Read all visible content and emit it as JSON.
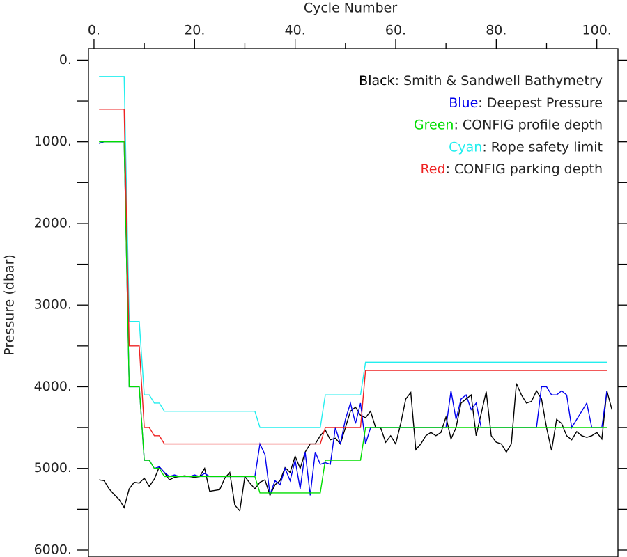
{
  "chart_data": {
    "type": "line",
    "xlabel": "Cycle Number",
    "ylabel": "Pressure (dbar)",
    "xlim": [
      -1.1,
      104.2
    ],
    "ylim": [
      -140,
      6000
    ],
    "y_inverted": true,
    "xticks": [
      {
        "value": 0,
        "label": "0."
      },
      {
        "value": 20,
        "label": "20."
      },
      {
        "value": 40,
        "label": "40."
      },
      {
        "value": 60,
        "label": "60."
      },
      {
        "value": 80,
        "label": "80."
      },
      {
        "value": 100,
        "label": "100."
      }
    ],
    "xminor_ticks": [
      10,
      30,
      50,
      70,
      90
    ],
    "yticks": [
      {
        "value": 0,
        "label": "0."
      },
      {
        "value": 1000,
        "label": "1000."
      },
      {
        "value": 2000,
        "label": "2000."
      },
      {
        "value": 3000,
        "label": "3000."
      },
      {
        "value": 4000,
        "label": "4000."
      },
      {
        "value": 5000,
        "label": "5000."
      },
      {
        "value": 6000,
        "label": "6000."
      }
    ],
    "yminor_ticks": [
      500,
      1500,
      2500,
      3500,
      4500,
      5500
    ],
    "legend_separator": ": ",
    "series": [
      {
        "legend_key": "Black",
        "name": "Smith & Sandwell Bathymetry",
        "color": "#000000",
        "x": [
          1,
          2,
          3,
          4,
          5,
          6,
          7,
          8,
          9,
          10,
          11,
          12,
          13,
          14,
          15,
          16,
          17,
          18,
          19,
          20,
          21,
          22,
          23,
          24,
          25,
          26,
          27,
          28,
          29,
          30,
          31,
          32,
          33,
          34,
          35,
          36,
          37,
          38,
          39,
          40,
          41,
          42,
          43,
          44,
          45,
          46,
          47,
          48,
          49,
          50,
          51,
          52,
          53,
          54,
          55,
          56,
          57,
          58,
          59,
          60,
          61,
          62,
          63,
          64,
          65,
          66,
          67,
          68,
          69,
          70,
          71,
          72,
          73,
          74,
          75,
          76,
          77,
          78,
          79,
          80,
          81,
          82,
          83,
          84,
          85,
          86,
          87,
          88,
          89,
          90,
          91,
          92,
          93,
          94,
          95,
          96,
          97,
          98,
          99,
          100,
          101,
          102,
          103
        ],
        "values": [
          5140,
          5150,
          5250,
          5320,
          5380,
          5480,
          5250,
          5170,
          5180,
          5120,
          5220,
          5130,
          4980,
          5050,
          5140,
          5110,
          5100,
          5090,
          5100,
          5110,
          5100,
          5000,
          5280,
          5270,
          5260,
          5120,
          5050,
          5450,
          5520,
          5100,
          5180,
          5250,
          5170,
          5140,
          5330,
          5200,
          5150,
          4990,
          5050,
          4850,
          5000,
          4800,
          4700,
          4700,
          4600,
          4530,
          4650,
          4630,
          4700,
          4500,
          4300,
          4250,
          4350,
          4380,
          4300,
          4500,
          4500,
          4680,
          4600,
          4700,
          4450,
          4150,
          4070,
          4770,
          4700,
          4600,
          4560,
          4600,
          4560,
          4370,
          4640,
          4500,
          4200,
          4150,
          4100,
          4600,
          4330,
          4060,
          4600,
          4680,
          4700,
          4800,
          4700,
          3960,
          4100,
          4200,
          4180,
          4050,
          4150,
          4500,
          4780,
          4400,
          4450,
          4600,
          4650,
          4550,
          4600,
          4620,
          4600,
          4560,
          4640,
          4050,
          4280
        ]
      },
      {
        "legend_key": "Blue",
        "name": "Deepest Pressure",
        "color": "#0000ee",
        "x": [
          1,
          2,
          3,
          4,
          5,
          6,
          7,
          8,
          9,
          10,
          11,
          12,
          13,
          14,
          15,
          16,
          17,
          18,
          19,
          20,
          21,
          22,
          23,
          24,
          25,
          26,
          27,
          28,
          29,
          30,
          31,
          32,
          33,
          34,
          35,
          36,
          37,
          38,
          39,
          40,
          41,
          42,
          43,
          44,
          45,
          46,
          47,
          48,
          49,
          50,
          51,
          52,
          53,
          54,
          55,
          56,
          57,
          58,
          59,
          60,
          61,
          62,
          63,
          64,
          65,
          66,
          67,
          68,
          69,
          70,
          71,
          72,
          73,
          74,
          75,
          76,
          77,
          78,
          79,
          80,
          81,
          82,
          83,
          84,
          85,
          86,
          87,
          88,
          89,
          90,
          91,
          92,
          93,
          94,
          95,
          96,
          97,
          98,
          99,
          100,
          101,
          102
        ],
        "values": [
          1020,
          1000,
          1000,
          1000,
          1000,
          1000,
          4000,
          4000,
          4000,
          4900,
          4900,
          5000,
          4980,
          5050,
          5100,
          5080,
          5100,
          5100,
          5100,
          5080,
          5100,
          5060,
          5100,
          5100,
          5100,
          5100,
          5100,
          5100,
          5100,
          5100,
          5100,
          5100,
          4700,
          4830,
          5320,
          5150,
          5200,
          5000,
          5150,
          4900,
          5250,
          4800,
          5330,
          4800,
          4950,
          4930,
          4950,
          4500,
          4700,
          4400,
          4200,
          4450,
          4200,
          4700,
          4500,
          4500,
          4500,
          4500,
          4500,
          4500,
          4500,
          4500,
          4500,
          4500,
          4500,
          4500,
          4500,
          4500,
          4500,
          4500,
          4050,
          4400,
          4150,
          4100,
          4280,
          4200,
          4500,
          4500,
          4500,
          4500,
          4500,
          4500,
          4500,
          4500,
          4500,
          4500,
          4500,
          4500,
          4000,
          4000,
          4100,
          4100,
          4050,
          4100,
          4500,
          4400,
          4300,
          4200,
          4500,
          4500,
          4500,
          4050
        ]
      },
      {
        "legend_key": "Green",
        "name": "CONFIG profile depth",
        "color": "#00dd00",
        "x": [
          1,
          6,
          7,
          9,
          10,
          11,
          12,
          13,
          14,
          32,
          33,
          45,
          46,
          53,
          54,
          102
        ],
        "values": [
          1000,
          1000,
          4000,
          4000,
          4900,
          4900,
          5000,
          5000,
          5100,
          5100,
          5300,
          5300,
          4900,
          4900,
          4500,
          4500
        ]
      },
      {
        "legend_key": "Cyan",
        "name": "Rope safety limit",
        "color": "#22eeee",
        "x": [
          1,
          6,
          7,
          9,
          10,
          11,
          12,
          13,
          14,
          32,
          33,
          45,
          46,
          53,
          54,
          102
        ],
        "values": [
          200,
          200,
          3200,
          3200,
          4100,
          4100,
          4200,
          4200,
          4300,
          4300,
          4500,
          4500,
          4100,
          4100,
          3700,
          3700
        ]
      },
      {
        "legend_key": "Red",
        "name": "CONFIG parking depth",
        "color": "#ee2222",
        "x": [
          1,
          6,
          7,
          9,
          10,
          11,
          12,
          13,
          14,
          45,
          46,
          53,
          54,
          102
        ],
        "values": [
          600,
          600,
          3500,
          3500,
          4500,
          4500,
          4600,
          4600,
          4700,
          4700,
          4500,
          4500,
          3800,
          3800
        ]
      }
    ]
  }
}
